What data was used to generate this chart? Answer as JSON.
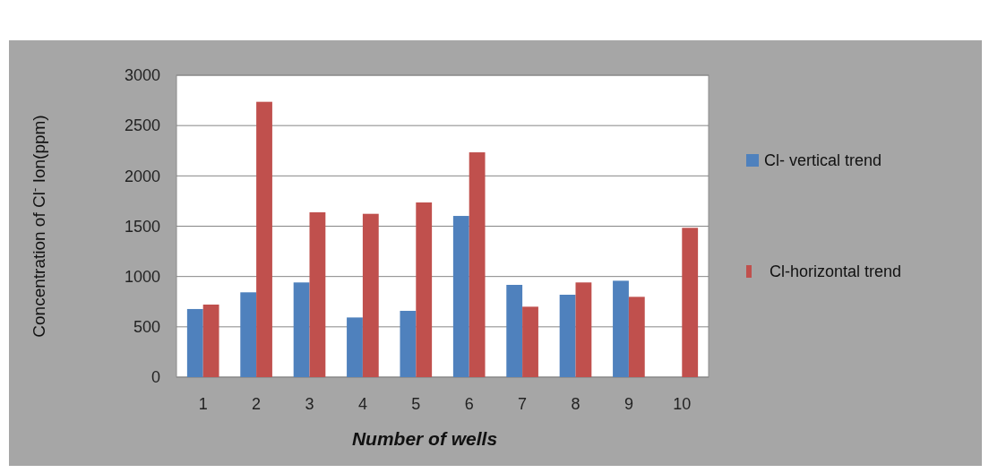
{
  "chart_data": {
    "type": "bar",
    "xlabel": "Number of wells",
    "ylabel": "Concentration of Cl$^{-}$ Ion(ppm)",
    "categories": [
      "1",
      "2",
      "3",
      "4",
      "5",
      "6",
      "7",
      "8",
      "9",
      "10"
    ],
    "series": [
      {
        "name": "Cl- vertical trend",
        "color": "#4f81bd",
        "values": [
          677,
          843,
          941,
          593,
          659,
          1602,
          917,
          819,
          958,
          null
        ]
      },
      {
        "name": "Cl-horizontal trend",
        "color": "#c0504d",
        "values": [
          721,
          2736,
          1638,
          1623,
          1736,
          2234,
          700,
          941,
          798,
          1484
        ]
      }
    ],
    "ylim": [
      0,
      3000
    ],
    "yticks": [
      0,
      500,
      1000,
      1500,
      2000,
      2500,
      3000
    ],
    "grid": "y",
    "legend": "right"
  }
}
